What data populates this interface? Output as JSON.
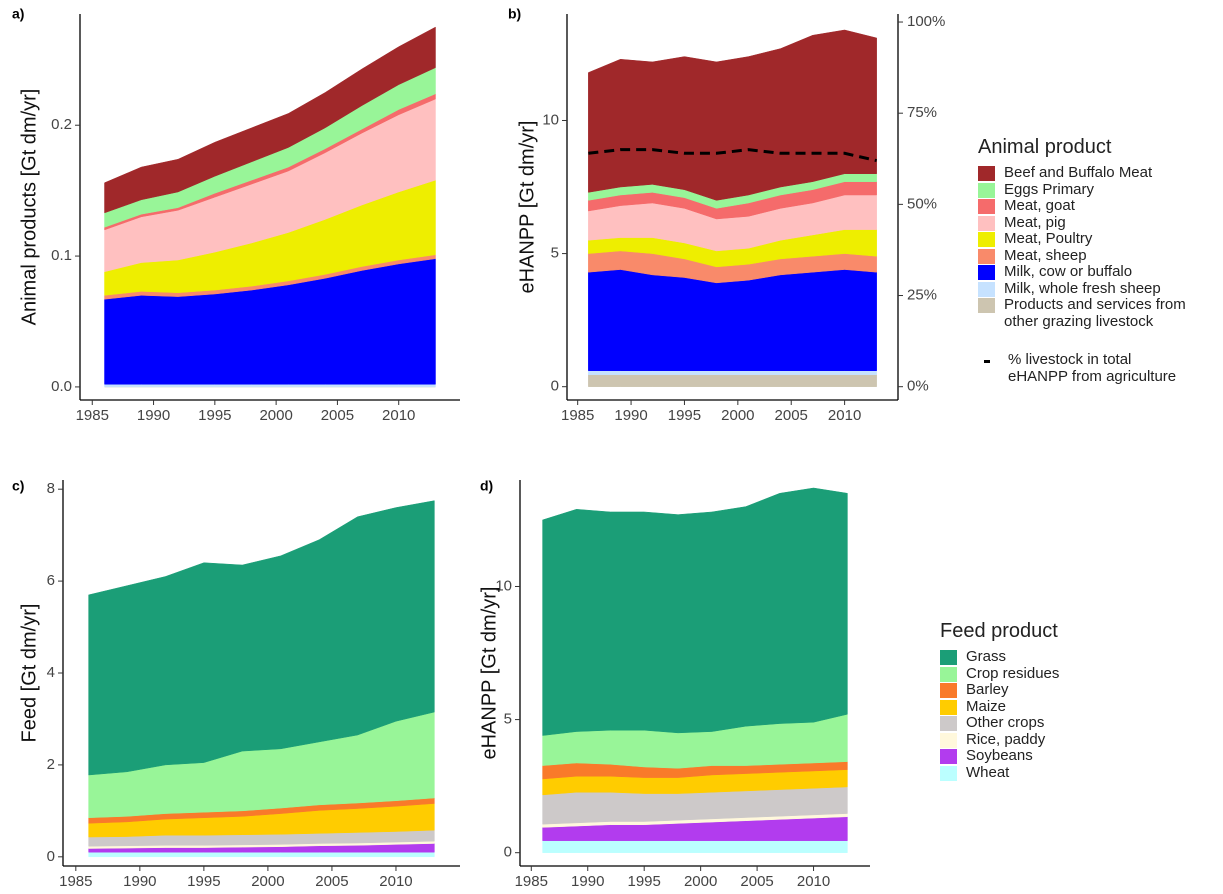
{
  "chart_data": [
    {
      "type": "area",
      "panel_label": "a)",
      "y_label": "Animal products [Gt dm/yr]",
      "x": [
        1986,
        1989,
        1992,
        1995,
        1998,
        2001,
        2004,
        2007,
        2010,
        2013
      ],
      "xlim": [
        1984,
        2015
      ],
      "xticks": [
        1985,
        1990,
        1995,
        2000,
        2005,
        2010
      ],
      "ylim": [
        -0.01,
        0.285
      ],
      "yticks": [
        {
          "value": 0,
          "label": "0.0"
        },
        0.1,
        0.2
      ],
      "series": [
        {
          "name": "Beef and Buffalo Meat",
          "color": "#a0282a",
          "values": [
            0.023,
            0.025,
            0.025,
            0.026,
            0.026,
            0.026,
            0.027,
            0.028,
            0.029,
            0.031
          ]
        },
        {
          "name": "Eggs Primary",
          "color": "#98f598",
          "values": [
            0.011,
            0.011,
            0.012,
            0.013,
            0.014,
            0.015,
            0.016,
            0.018,
            0.019,
            0.02
          ]
        },
        {
          "name": "Meat, goat",
          "color": "#f56b6b",
          "values": [
            0.002,
            0.002,
            0.002,
            0.003,
            0.003,
            0.003,
            0.003,
            0.003,
            0.004,
            0.004
          ]
        },
        {
          "name": "Meat, pig",
          "color": "#ffc0c0",
          "values": [
            0.032,
            0.035,
            0.038,
            0.042,
            0.045,
            0.047,
            0.051,
            0.055,
            0.059,
            0.062
          ]
        },
        {
          "name": "Meat, Poultry",
          "color": "#eeee00",
          "values": [
            0.018,
            0.022,
            0.025,
            0.029,
            0.033,
            0.037,
            0.042,
            0.047,
            0.052,
            0.057
          ]
        },
        {
          "name": "Meat, sheep",
          "color": "#f98a6a",
          "values": [
            0.003,
            0.003,
            0.003,
            0.003,
            0.003,
            0.003,
            0.003,
            0.003,
            0.003,
            0.003
          ]
        },
        {
          "name": "Milk, cow or buffalo",
          "color": "#0000ff",
          "values": [
            0.065,
            0.068,
            0.067,
            0.069,
            0.072,
            0.076,
            0.081,
            0.087,
            0.092,
            0.096
          ]
        },
        {
          "name": "Milk, whole fresh sheep",
          "color": "#c6e2ff",
          "values": [
            0.002,
            0.002,
            0.002,
            0.002,
            0.002,
            0.002,
            0.002,
            0.002,
            0.002,
            0.002
          ]
        },
        {
          "name": "Products and services from other grazing livestock",
          "color": "#cdc5b0",
          "values": [
            0,
            0,
            0,
            0,
            0,
            0,
            0,
            0,
            0,
            0
          ]
        }
      ]
    },
    {
      "type": "area",
      "panel_label": "b)",
      "y_label": "eHANPP [Gt dm/yr]",
      "legend_title": "Animal product",
      "x": [
        1986,
        1989,
        1992,
        1995,
        1998,
        2001,
        2004,
        2007,
        2010,
        2013
      ],
      "xlim": [
        1984,
        2015
      ],
      "xticks": [
        1985,
        1990,
        1995,
        2000,
        2005,
        2010
      ],
      "ylim": [
        -0.5,
        14
      ],
      "yticks": [
        0,
        5,
        10
      ],
      "y2lim": [
        -3.65,
        102.2
      ],
      "y2ticks": [
        {
          "value": 0,
          "label": "0%"
        },
        {
          "value": 25,
          "label": "25%"
        },
        {
          "value": 50,
          "label": "50%"
        },
        {
          "value": 75,
          "label": "75%"
        },
        {
          "value": 100,
          "label": "100%"
        }
      ],
      "series": [
        {
          "name": "Beef and Buffalo Meat",
          "color": "#a0282a",
          "values": [
            4.5,
            4.8,
            4.6,
            5.0,
            5.2,
            5.2,
            5.2,
            5.5,
            5.4,
            5.1
          ]
        },
        {
          "name": "Eggs Primary",
          "color": "#98f598",
          "values": [
            0.3,
            0.3,
            0.3,
            0.3,
            0.3,
            0.3,
            0.3,
            0.3,
            0.3,
            0.3
          ]
        },
        {
          "name": "Meat, goat",
          "color": "#f56b6b",
          "values": [
            0.4,
            0.4,
            0.4,
            0.4,
            0.4,
            0.5,
            0.5,
            0.5,
            0.5,
            0.5
          ]
        },
        {
          "name": "Meat, pig",
          "color": "#ffc0c0",
          "values": [
            1.1,
            1.2,
            1.3,
            1.3,
            1.2,
            1.2,
            1.2,
            1.2,
            1.3,
            1.3
          ]
        },
        {
          "name": "Meat, Poultry",
          "color": "#eeee00",
          "values": [
            0.5,
            0.5,
            0.6,
            0.6,
            0.6,
            0.6,
            0.7,
            0.8,
            0.9,
            1.0
          ]
        },
        {
          "name": "Meat, sheep",
          "color": "#f98a6a",
          "values": [
            0.7,
            0.7,
            0.8,
            0.7,
            0.6,
            0.6,
            0.6,
            0.6,
            0.6,
            0.6
          ]
        },
        {
          "name": "Milk, cow or buffalo",
          "color": "#0000ff",
          "values": [
            3.7,
            3.8,
            3.6,
            3.5,
            3.3,
            3.4,
            3.6,
            3.7,
            3.8,
            3.7
          ]
        },
        {
          "name": "Milk, whole fresh sheep",
          "color": "#c6e2ff",
          "values": [
            0.15,
            0.15,
            0.15,
            0.15,
            0.15,
            0.15,
            0.15,
            0.15,
            0.15,
            0.15
          ]
        },
        {
          "name": "Products and services from other grazing livestock",
          "color": "#cdc5b0",
          "values": [
            0.45,
            0.45,
            0.45,
            0.45,
            0.45,
            0.45,
            0.45,
            0.45,
            0.45,
            0.45
          ]
        },
        {
          "name": "% livestock in total eHANPP from agriculture",
          "type": "line",
          "axis": "y2",
          "dashed": true,
          "color": "#000000",
          "values": [
            64,
            65,
            65,
            64,
            64,
            65,
            64,
            64,
            64,
            62
          ]
        }
      ]
    },
    {
      "type": "area",
      "panel_label": "c)",
      "y_label": "Feed [Gt dm/yr]",
      "x": [
        1986,
        1989,
        1992,
        1995,
        1998,
        2001,
        2004,
        2007,
        2010,
        2013
      ],
      "xlim": [
        1984,
        2015
      ],
      "xticks": [
        1985,
        1990,
        1995,
        2000,
        2005,
        2010
      ],
      "ylim": [
        -0.2,
        8.2
      ],
      "yticks": [
        0,
        2,
        4,
        6,
        8
      ],
      "series": [
        {
          "name": "Grass",
          "color": "#1b9e77",
          "values": [
            3.92,
            4.05,
            4.1,
            4.35,
            4.05,
            4.2,
            4.4,
            4.75,
            4.65,
            4.6
          ]
        },
        {
          "name": "Crop residues",
          "color": "#98f598",
          "values": [
            0.93,
            0.97,
            1.06,
            1.08,
            1.3,
            1.29,
            1.37,
            1.48,
            1.73,
            1.87
          ]
        },
        {
          "name": "Barley",
          "color": "#f97a2a",
          "values": [
            0.12,
            0.12,
            0.12,
            0.12,
            0.12,
            0.12,
            0.12,
            0.12,
            0.12,
            0.12
          ]
        },
        {
          "name": "Maize",
          "color": "#ffcc00",
          "values": [
            0.3,
            0.32,
            0.35,
            0.38,
            0.4,
            0.45,
            0.5,
            0.52,
            0.55,
            0.58
          ]
        },
        {
          "name": "Other crops",
          "color": "#cdc9c9",
          "values": [
            0.2,
            0.2,
            0.22,
            0.22,
            0.22,
            0.22,
            0.22,
            0.23,
            0.23,
            0.24
          ]
        },
        {
          "name": "Rice, paddy",
          "color": "#fff8dc",
          "values": [
            0.05,
            0.05,
            0.05,
            0.05,
            0.05,
            0.05,
            0.05,
            0.05,
            0.05,
            0.05
          ]
        },
        {
          "name": "Soybeans",
          "color": "#b23cee",
          "values": [
            0.08,
            0.09,
            0.1,
            0.1,
            0.11,
            0.12,
            0.14,
            0.15,
            0.17,
            0.19
          ]
        },
        {
          "name": "Wheat",
          "color": "#bbffff",
          "values": [
            0.1,
            0.1,
            0.1,
            0.1,
            0.1,
            0.1,
            0.1,
            0.1,
            0.1,
            0.1
          ]
        }
      ]
    },
    {
      "type": "area",
      "panel_label": "d)",
      "y_label": "eHANPP [Gt dm/yr]",
      "legend_title": "Feed product",
      "x": [
        1986,
        1989,
        1992,
        1995,
        1998,
        2001,
        2004,
        2007,
        2010,
        2013
      ],
      "xlim": [
        1984,
        2015
      ],
      "xticks": [
        1985,
        1990,
        1995,
        2000,
        2005,
        2010
      ],
      "ylim": [
        -0.5,
        14
      ],
      "yticks": [
        0,
        5,
        10
      ],
      "series": [
        {
          "name": "Grass",
          "color": "#1b9e77",
          "values": [
            8.1,
            8.35,
            8.2,
            8.2,
            8.2,
            8.25,
            8.25,
            8.65,
            8.8,
            8.3
          ]
        },
        {
          "name": "Crop residues",
          "color": "#98f598",
          "values": [
            1.13,
            1.18,
            1.28,
            1.38,
            1.33,
            1.28,
            1.48,
            1.53,
            1.53,
            1.78
          ]
        },
        {
          "name": "Barley",
          "color": "#f97a2a",
          "values": [
            0.5,
            0.5,
            0.45,
            0.4,
            0.35,
            0.35,
            0.3,
            0.3,
            0.3,
            0.3
          ]
        },
        {
          "name": "Maize",
          "color": "#ffcc00",
          "values": [
            0.6,
            0.6,
            0.6,
            0.6,
            0.6,
            0.65,
            0.65,
            0.65,
            0.65,
            0.65
          ]
        },
        {
          "name": "Other crops",
          "color": "#cdc9c9",
          "values": [
            1.1,
            1.15,
            1.1,
            1.05,
            1.0,
            1.0,
            1.0,
            1.0,
            1.0,
            1.0
          ]
        },
        {
          "name": "Rice, paddy",
          "color": "#fff8dc",
          "values": [
            0.12,
            0.12,
            0.12,
            0.12,
            0.12,
            0.12,
            0.12,
            0.12,
            0.12,
            0.12
          ]
        },
        {
          "name": "Soybeans",
          "color": "#b23cee",
          "values": [
            0.5,
            0.55,
            0.6,
            0.6,
            0.65,
            0.7,
            0.75,
            0.8,
            0.85,
            0.9
          ]
        },
        {
          "name": "Wheat",
          "color": "#bbffff",
          "values": [
            0.45,
            0.45,
            0.45,
            0.45,
            0.45,
            0.45,
            0.45,
            0.45,
            0.45,
            0.45
          ]
        }
      ]
    }
  ]
}
